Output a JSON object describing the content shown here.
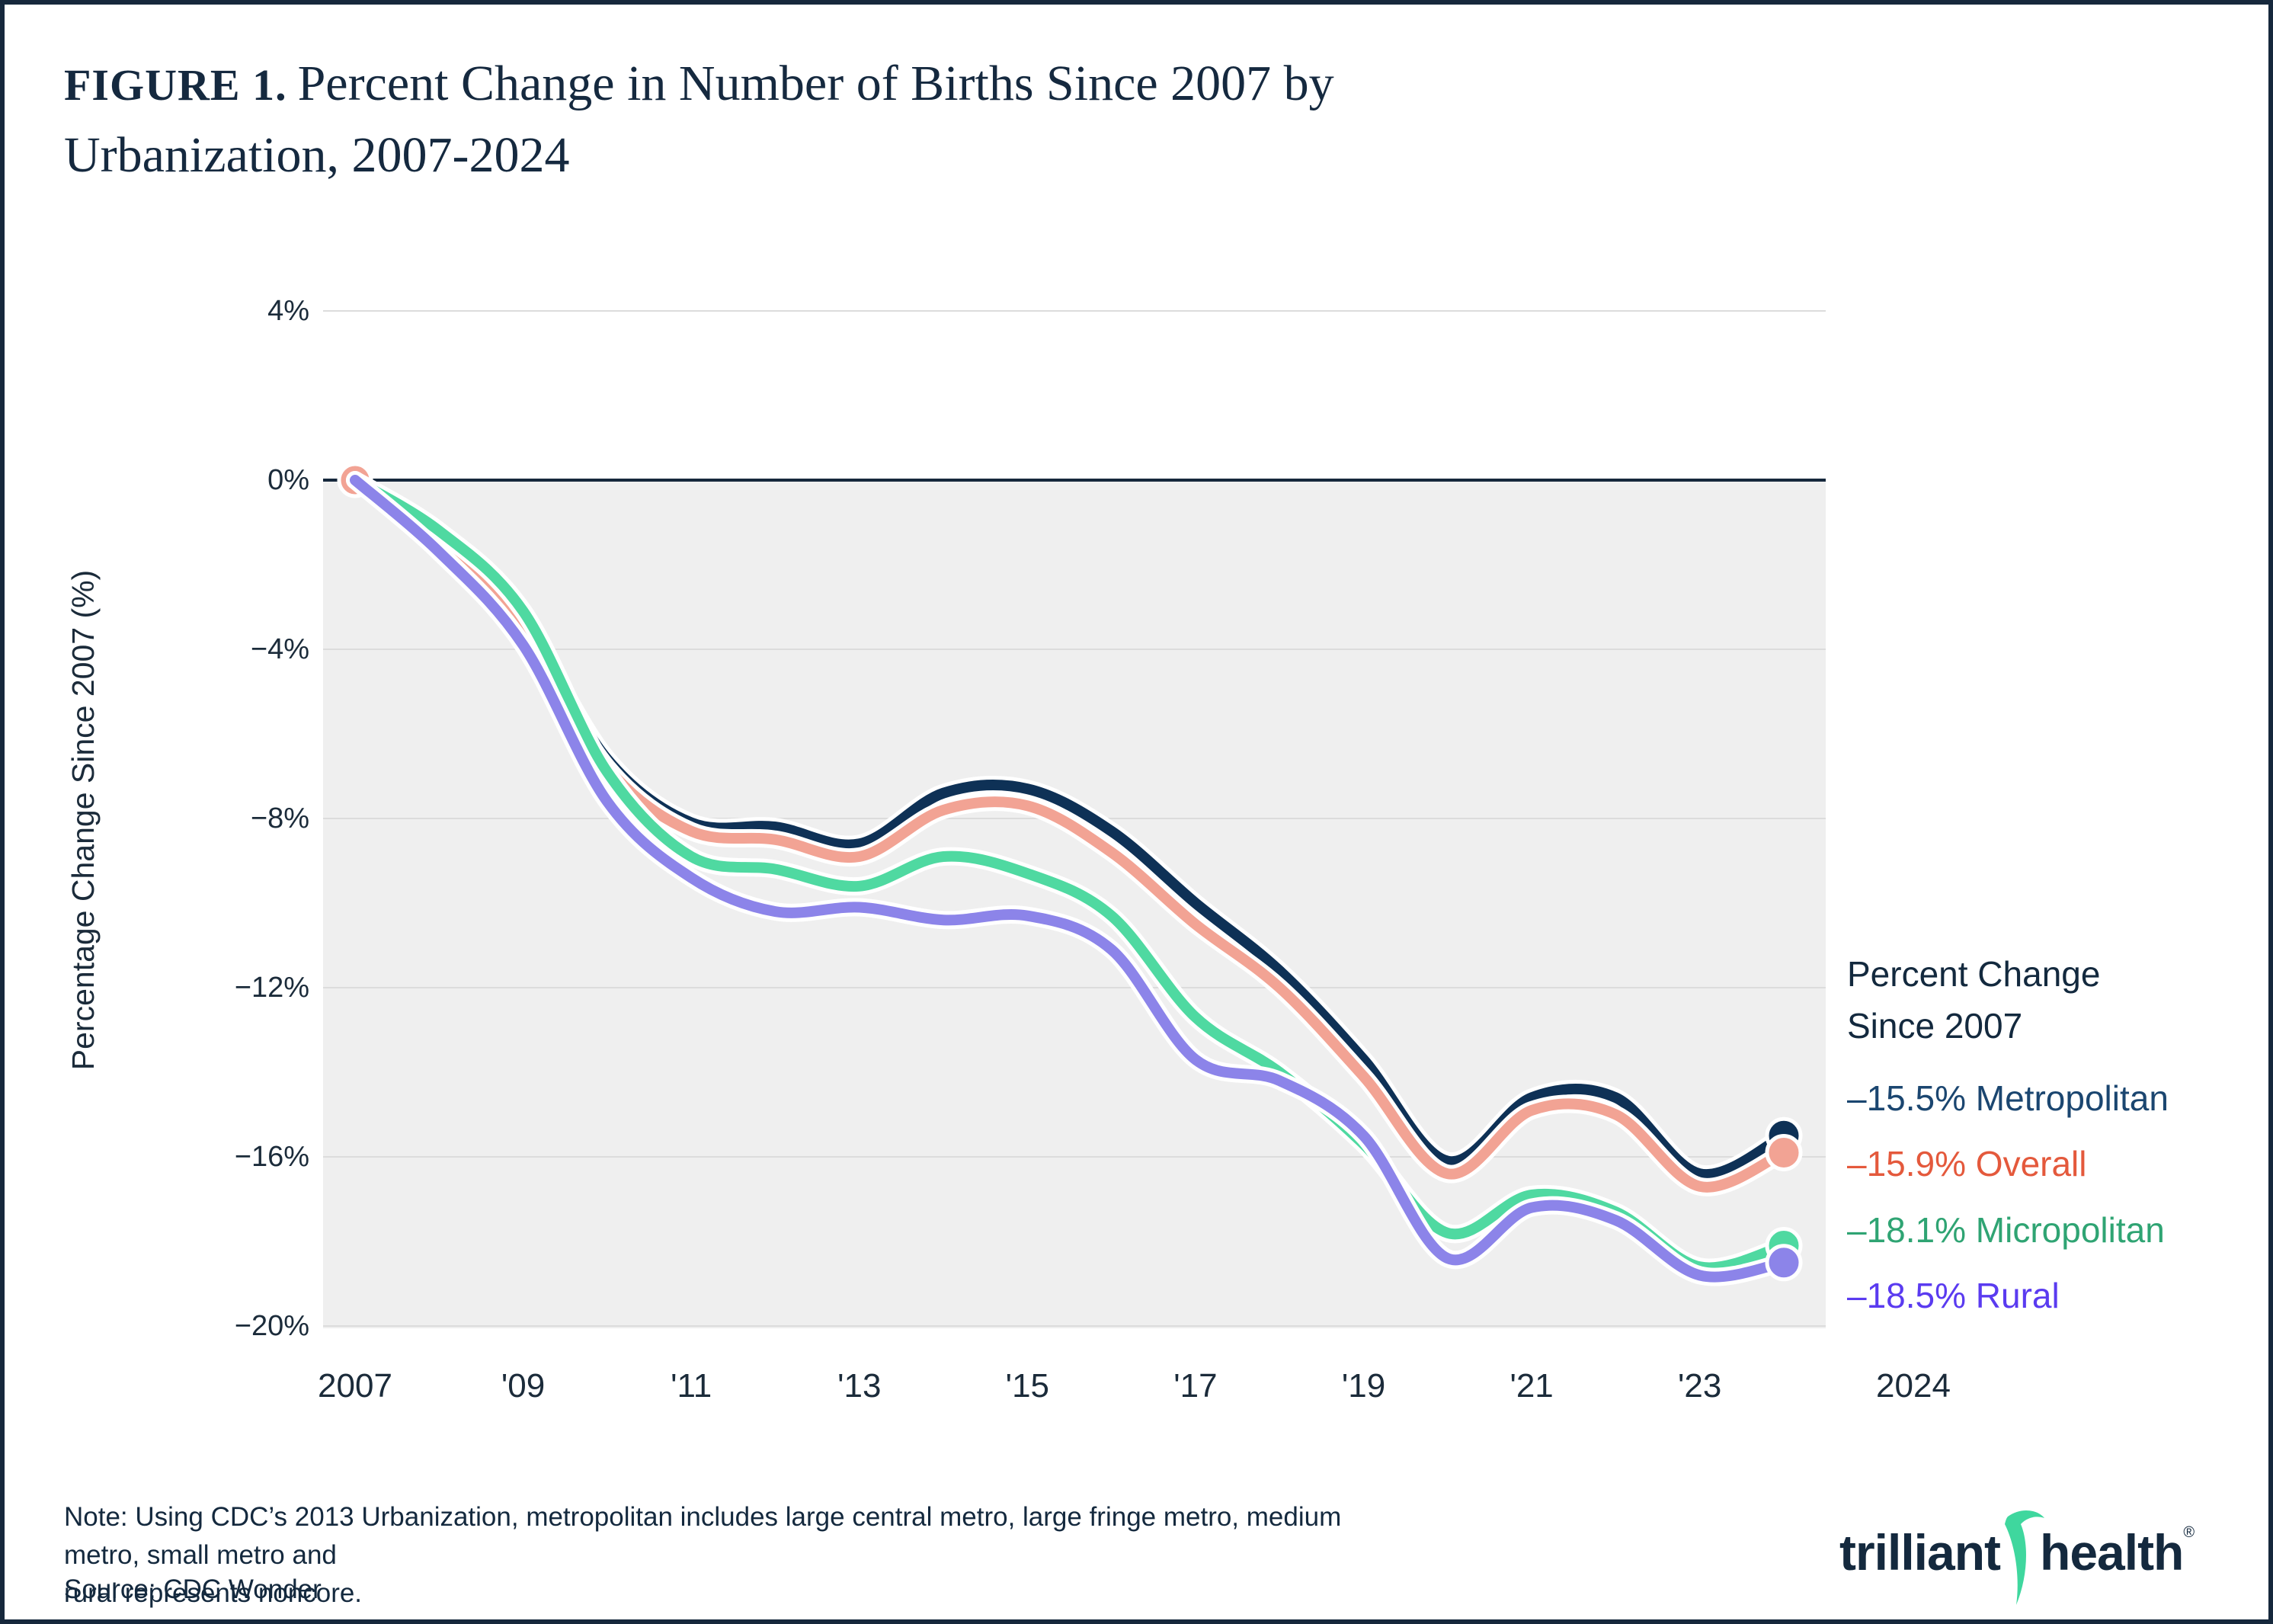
{
  "figure": {
    "label": "FIGURE 1.",
    "title": "Percent Change in Number of Births Since 2007 by Urbanization, 2007-2024",
    "title_line1": "Percent Change in Number of Births Since 2007 by",
    "title_line2": "Urbanization, 2007-2024"
  },
  "chart_data": {
    "type": "line",
    "title": "Percent Change in Number of Births Since 2007 by Urbanization, 2007-2024",
    "xlabel": "",
    "ylabel": "Percentage Change Since 2007 (%)",
    "ylim": [
      -20,
      4
    ],
    "grid": "horizontal only",
    "plot_bg_color": "#efefef",
    "gridline_color": "#dcdcdc",
    "zero_line_color": "#16283c",
    "years": [
      2007,
      2008,
      2009,
      2010,
      2011,
      2012,
      2013,
      2014,
      2015,
      2016,
      2017,
      2018,
      2019,
      2020,
      2021,
      2022,
      2023,
      2024
    ],
    "x_ticks": [
      {
        "year": 2007,
        "label": "2007"
      },
      {
        "year": 2009,
        "label": "'09"
      },
      {
        "year": 2011,
        "label": "'11"
      },
      {
        "year": 2013,
        "label": "'13"
      },
      {
        "year": 2015,
        "label": "'15"
      },
      {
        "year": 2017,
        "label": "'17"
      },
      {
        "year": 2019,
        "label": "'19"
      },
      {
        "year": 2021,
        "label": "'21"
      },
      {
        "year": 2023,
        "label": "'23"
      },
      {
        "year": 2024,
        "label": "2024"
      }
    ],
    "y_ticks": [
      {
        "value": 4,
        "label": "4%"
      },
      {
        "value": 0,
        "label": "0%"
      },
      {
        "value": -4,
        "label": "−4%"
      },
      {
        "value": -8,
        "label": "−8%"
      },
      {
        "value": -12,
        "label": "−12%"
      },
      {
        "value": -16,
        "label": "−16%"
      },
      {
        "value": -20,
        "label": "−20%"
      }
    ],
    "legend_title": "Percent Change Since 2007",
    "legend_position": "right",
    "series": [
      {
        "name": "Metropolitan",
        "line_color": "#0e3156",
        "legend_color": "#1b4670",
        "end_value_pct": -15.5,
        "end_label": "–15.5% Metropolitan",
        "values": [
          0,
          -1.4,
          -3.4,
          -6.6,
          -8.1,
          -8.2,
          -8.6,
          -7.4,
          -7.3,
          -8.3,
          -10.0,
          -11.6,
          -13.7,
          -16.1,
          -14.6,
          -14.6,
          -16.4,
          -15.5
        ]
      },
      {
        "name": "Overall",
        "line_color": "#f2a394",
        "legend_color": "#e4593c",
        "end_value_pct": -15.9,
        "end_label": "–15.9% Overall",
        "marker_start": true,
        "values": [
          0,
          -1.5,
          -3.6,
          -6.8,
          -8.3,
          -8.5,
          -8.9,
          -7.8,
          -7.7,
          -8.8,
          -10.5,
          -12.0,
          -14.1,
          -16.4,
          -14.9,
          -15.0,
          -16.7,
          -15.9
        ]
      },
      {
        "name": "Micropolitan",
        "line_color": "#4fd9a1",
        "legend_color": "#2fa473",
        "end_value_pct": -18.1,
        "end_label": "–18.1% Micropolitan",
        "values": [
          0,
          -1.2,
          -3.1,
          -6.9,
          -8.9,
          -9.2,
          -9.6,
          -8.9,
          -9.3,
          -10.3,
          -12.7,
          -14.0,
          -15.7,
          -17.8,
          -16.9,
          -17.3,
          -18.6,
          -18.1
        ]
      },
      {
        "name": "Rural",
        "line_color": "#8c84e9",
        "legend_color": "#5a3bf0",
        "end_value_pct": -18.5,
        "end_label": "–18.5% Rural",
        "values": [
          0,
          -1.7,
          -3.9,
          -7.6,
          -9.4,
          -10.2,
          -10.1,
          -10.4,
          -10.3,
          -11.1,
          -13.7,
          -14.2,
          -15.5,
          -18.4,
          -17.2,
          -17.5,
          -18.8,
          -18.5
        ]
      }
    ]
  },
  "footer": {
    "note_lines": [
      "Note: Using CDC’s 2013 Urbanization, metropolitan includes large central metro, large fringe metro, medium metro, small metro and",
      "rural represents noncore."
    ],
    "source": "Source: CDC Wonder"
  },
  "logo": {
    "word1": "trilliant",
    "word2": "health",
    "registered": "®",
    "swoosh_color": "#3fd79e"
  }
}
